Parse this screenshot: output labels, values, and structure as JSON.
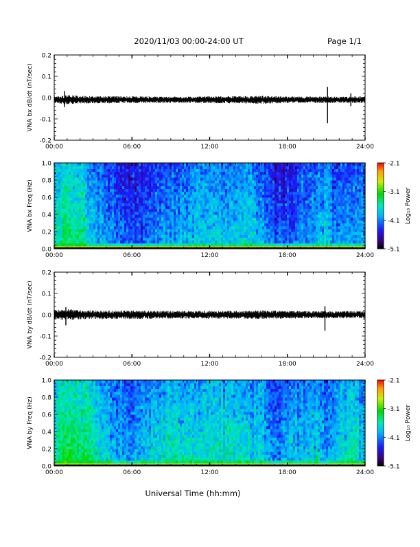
{
  "header": {
    "title": "2020/11/03  00:00-24:00 UT",
    "page": "Page 1/1"
  },
  "footer": {
    "xlabel": "Universal Time (hh:mm)"
  },
  "chart_data": [
    {
      "type": "line",
      "id": "bx-waveform",
      "ylabel": "VNA bx dB/dt (nT/sec)",
      "xlim": [
        0,
        24
      ],
      "ylim": [
        -0.2,
        0.2
      ],
      "x_tick_values": [
        0,
        6,
        12,
        18,
        24
      ],
      "x_tick_labels": [
        "00:00",
        "06:00",
        "12:00",
        "18:00",
        "24:00"
      ],
      "y_tick_values": [
        -0.2,
        -0.1,
        0.0,
        0.1,
        0.2
      ],
      "y_tick_labels": [
        "-0.2",
        "-0.1",
        "0.0",
        "0.1",
        "0.2"
      ],
      "series": [
        {
          "color": "#000000",
          "baseline": -0.01,
          "envelope": [
            [
              0,
              0.012
            ],
            [
              1,
              0.02
            ],
            [
              2,
              0.015
            ],
            [
              4,
              0.014
            ],
            [
              6,
              0.014
            ],
            [
              8,
              0.013
            ],
            [
              10,
              0.012
            ],
            [
              12,
              0.014
            ],
            [
              14,
              0.014
            ],
            [
              16,
              0.016
            ],
            [
              18,
              0.013
            ],
            [
              20,
              0.013
            ],
            [
              22,
              0.012
            ],
            [
              24,
              0.014
            ]
          ],
          "spikes": [
            {
              "x": 0.8,
              "min": -0.045,
              "max": 0.03
            },
            {
              "x": 21.1,
              "min": -0.12,
              "max": 0.05
            },
            {
              "x": 22.9,
              "min": -0.04,
              "max": 0.02
            }
          ]
        }
      ]
    },
    {
      "type": "heatmap",
      "id": "bx-spectrogram",
      "ylabel": "VNA bx Freq (Hz)",
      "xlim": [
        0,
        24
      ],
      "ylim": [
        0,
        1.0
      ],
      "x_tick_values": [
        0,
        6,
        12,
        18,
        24
      ],
      "x_tick_labels": [
        "00:00",
        "06:00",
        "12:00",
        "18:00",
        "24:00"
      ],
      "y_tick_values": [
        0.0,
        0.2,
        0.4,
        0.6,
        0.8,
        1.0
      ],
      "y_tick_labels": [
        "0.0",
        "0.2",
        "0.4",
        "0.6",
        "0.8",
        "1.0"
      ],
      "colorbar": {
        "label": "Log₁₀ Power",
        "range": [
          -5.1,
          -2.1
        ],
        "tick_values": [
          -2.1,
          -3.1,
          -4.1,
          -5.1
        ],
        "tick_labels": [
          "-2.1",
          "-3.1",
          "-4.1",
          "-5.1"
        ]
      },
      "low_freq_power": -2.6,
      "activity_profile": [
        [
          0,
          -3.7
        ],
        [
          1,
          -3.4
        ],
        [
          2,
          -3.5
        ],
        [
          3,
          -3.8
        ],
        [
          4,
          -4.0
        ],
        [
          5,
          -4.2
        ],
        [
          6,
          -4.3
        ],
        [
          7,
          -4.2
        ],
        [
          8,
          -4.1
        ],
        [
          9,
          -4.0
        ],
        [
          10,
          -3.9
        ],
        [
          11,
          -3.8
        ],
        [
          12,
          -3.8
        ],
        [
          13,
          -3.8
        ],
        [
          14,
          -3.9
        ],
        [
          15,
          -3.7
        ],
        [
          16,
          -3.9
        ],
        [
          17,
          -4.3
        ],
        [
          18,
          -4.3
        ],
        [
          19,
          -4.1
        ],
        [
          20,
          -3.9
        ],
        [
          21,
          -3.8
        ],
        [
          22,
          -4.1
        ],
        [
          23,
          -4.0
        ],
        [
          24,
          -3.9
        ]
      ]
    },
    {
      "type": "line",
      "id": "by-waveform",
      "ylabel": "VNA by dB/dt (nT/sec)",
      "xlim": [
        0,
        24
      ],
      "ylim": [
        -0.2,
        0.2
      ],
      "x_tick_values": [
        0,
        6,
        12,
        18,
        24
      ],
      "x_tick_labels": [
        "00:00",
        "06:00",
        "12:00",
        "18:00",
        "24:00"
      ],
      "y_tick_values": [
        -0.2,
        -0.1,
        0.0,
        0.1,
        0.2
      ],
      "y_tick_labels": [
        "-0.2",
        "-0.1",
        "0.0",
        "0.1",
        "0.2"
      ],
      "series": [
        {
          "color": "#000000",
          "baseline": 0.0,
          "envelope": [
            [
              0,
              0.018
            ],
            [
              1,
              0.022
            ],
            [
              2,
              0.018
            ],
            [
              4,
              0.017
            ],
            [
              6,
              0.017
            ],
            [
              8,
              0.016
            ],
            [
              10,
              0.015
            ],
            [
              12,
              0.016
            ],
            [
              14,
              0.015
            ],
            [
              16,
              0.017
            ],
            [
              18,
              0.015
            ],
            [
              20,
              0.014
            ],
            [
              22,
              0.014
            ],
            [
              24,
              0.015
            ]
          ],
          "spikes": [
            {
              "x": 0.9,
              "min": -0.05,
              "max": 0.035
            },
            {
              "x": 20.9,
              "min": -0.075,
              "max": 0.04
            }
          ]
        }
      ]
    },
    {
      "type": "heatmap",
      "id": "by-spectrogram",
      "ylabel": "VNA by Freq (Hz)",
      "xlim": [
        0,
        24
      ],
      "ylim": [
        0,
        1.0
      ],
      "x_tick_values": [
        0,
        6,
        12,
        18,
        24
      ],
      "x_tick_labels": [
        "00:00",
        "06:00",
        "12:00",
        "18:00",
        "24:00"
      ],
      "y_tick_values": [
        0.0,
        0.2,
        0.4,
        0.6,
        0.8,
        1.0
      ],
      "y_tick_labels": [
        "0.0",
        "0.2",
        "0.4",
        "0.6",
        "0.8",
        "1.0"
      ],
      "colorbar": {
        "label": "Log₁₀ Power",
        "range": [
          -5.1,
          -2.1
        ],
        "tick_values": [
          -2.1,
          -3.1,
          -4.1,
          -5.1
        ],
        "tick_labels": [
          "-2.1",
          "-3.1",
          "-4.1",
          "-5.1"
        ]
      },
      "low_freq_power": -2.7,
      "activity_profile": [
        [
          0,
          -3.6
        ],
        [
          1,
          -3.3
        ],
        [
          2,
          -3.4
        ],
        [
          3,
          -3.5
        ],
        [
          4,
          -3.8
        ],
        [
          5,
          -3.9
        ],
        [
          6,
          -4.0
        ],
        [
          7,
          -3.8
        ],
        [
          8,
          -3.7
        ],
        [
          9,
          -3.6
        ],
        [
          10,
          -3.6
        ],
        [
          11,
          -3.7
        ],
        [
          12,
          -3.6
        ],
        [
          13,
          -3.6
        ],
        [
          14,
          -3.6
        ],
        [
          15,
          -3.7
        ],
        [
          16,
          -3.8
        ],
        [
          17,
          -4.1
        ],
        [
          18,
          -3.9
        ],
        [
          19,
          -3.8
        ],
        [
          20,
          -3.7
        ],
        [
          21,
          -4.0
        ],
        [
          22,
          -3.8
        ],
        [
          23,
          -3.6
        ],
        [
          24,
          -3.8
        ]
      ]
    }
  ]
}
